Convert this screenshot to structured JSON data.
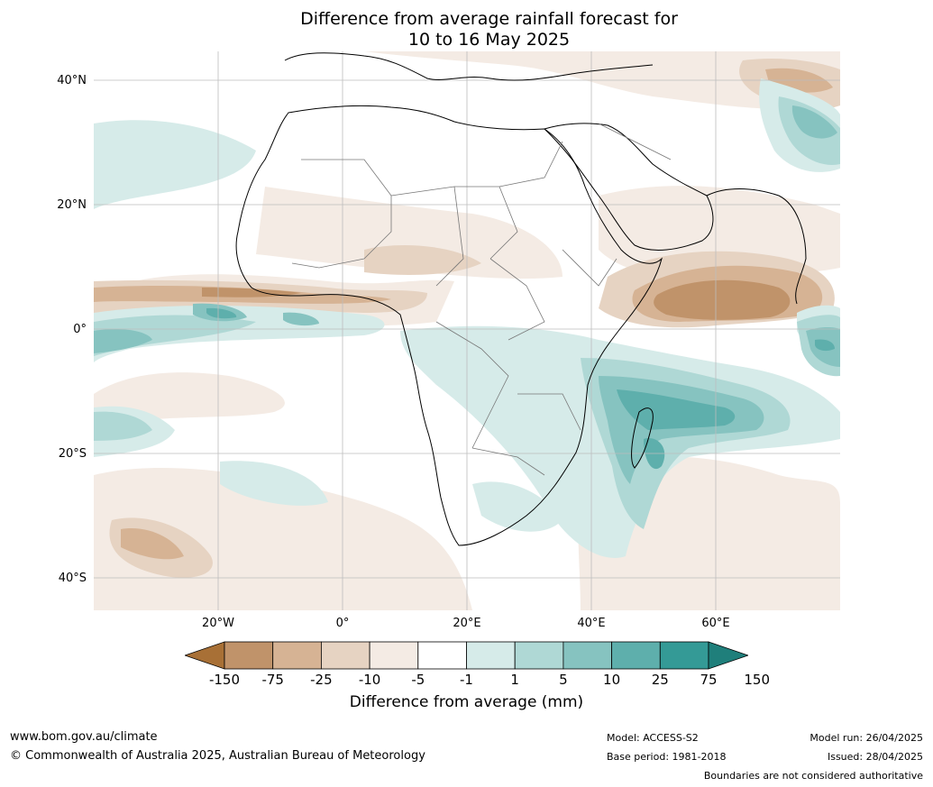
{
  "title": {
    "line1": "Difference from average rainfall forecast for",
    "line2": "10 to 16 May 2025"
  },
  "axes": {
    "lat_labels": [
      "40°N",
      "20°N",
      "0°",
      "20°S",
      "40°S"
    ],
    "lon_labels": [
      "20°W",
      "0°",
      "20°E",
      "40°E",
      "60°E"
    ]
  },
  "legend": {
    "title": "Difference from average (mm)",
    "ticks": [
      "-150",
      "-75",
      "-25",
      "-10",
      "-5",
      "-1",
      "1",
      "5",
      "10",
      "25",
      "75",
      "150"
    ],
    "colors": [
      "#a87036",
      "#c0936a",
      "#d6b394",
      "#e6d3c2",
      "#f4ebe4",
      "#ffffff",
      "#d6ebe9",
      "#afd8d5",
      "#86c3c0",
      "#5eafac",
      "#349a96",
      "#1f7f7b"
    ]
  },
  "footer": {
    "website": "www.bom.gov.au/climate",
    "copyright": "© Commonwealth of Australia 2025, Australian Bureau of Meteorology",
    "model": "Model: ACCESS-S2",
    "base_period": "Base period: 1981-2018",
    "model_run": "Model run: 26/04/2025",
    "issued": "Issued: 28/04/2025",
    "disclaimer": "Boundaries are not considered authoritative"
  }
}
